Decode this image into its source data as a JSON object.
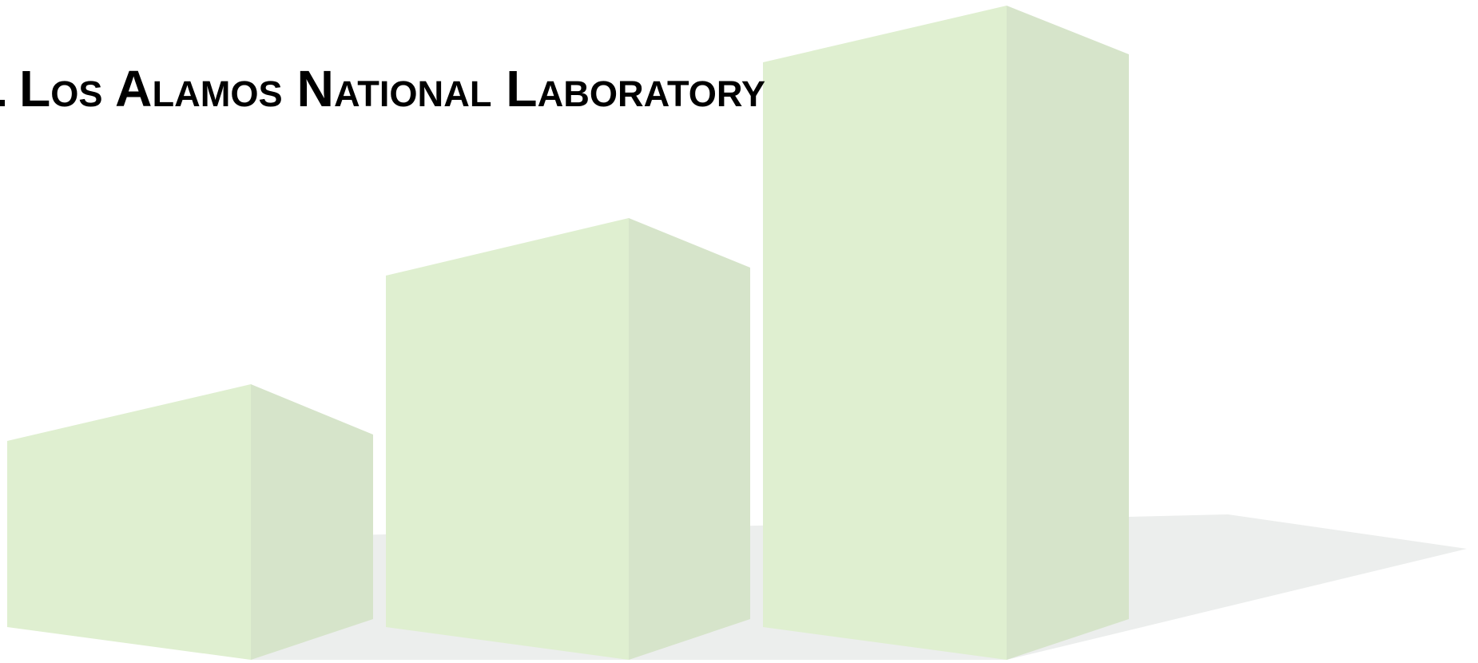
{
  "header": {
    "title": "Los Alamos National Laboratory"
  }
}
